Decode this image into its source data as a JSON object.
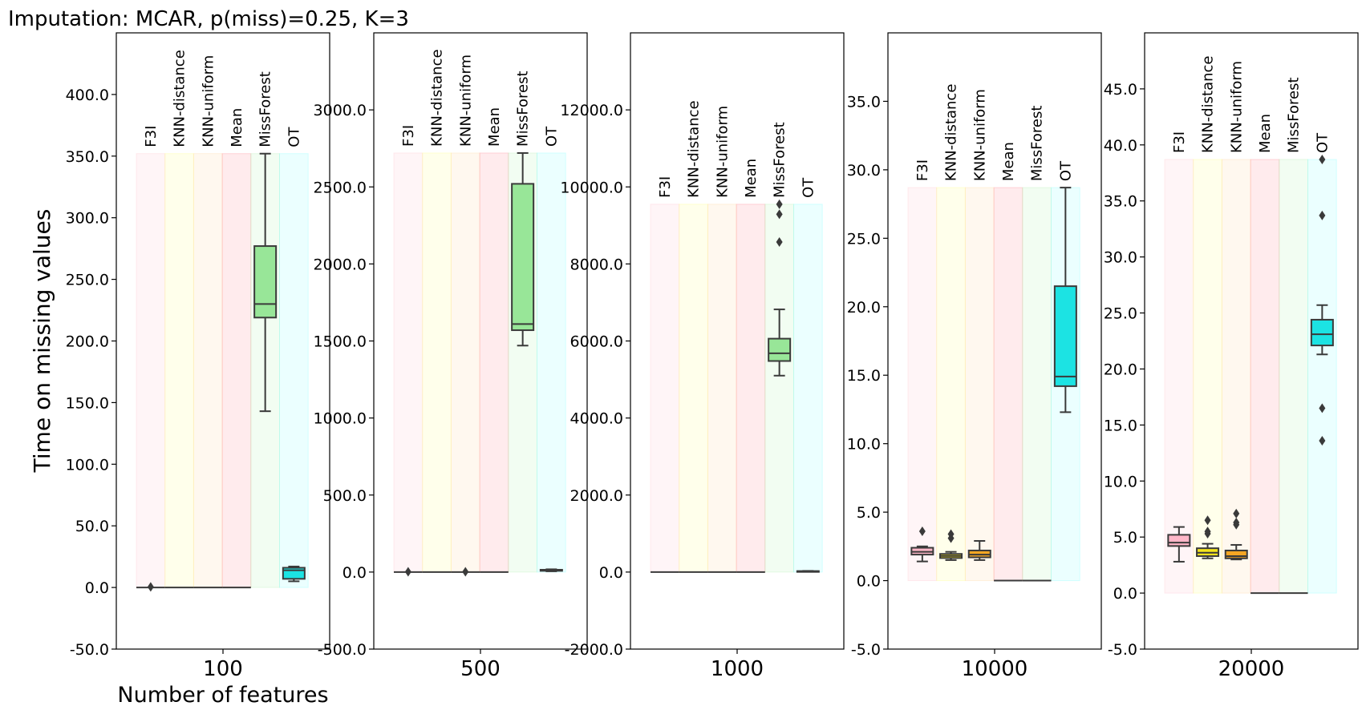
{
  "figure": {
    "title": "Imputation: MCAR, p(miss)=0.25, K=3",
    "ylabel": "Time on missing values",
    "xlabel": "Number of features"
  },
  "methods": [
    "F3I",
    "KNN-distance",
    "KNN-uniform",
    "Mean",
    "MissForest",
    "OT"
  ],
  "colors": {
    "band": [
      "#ffc0cb",
      "#ffff80",
      "#ffd59a",
      "#ff8090",
      "#b0f0b0",
      "#80ffff"
    ],
    "box": [
      "#ffb6c8",
      "#f5e51c",
      "#f5a623",
      "#f45b6a",
      "#98e698",
      "#1ce3e3"
    ],
    "line": "#3a3a3a"
  },
  "chart_data": [
    {
      "type": "box",
      "x_tick": "100",
      "ylim": [
        -50,
        450
      ],
      "yticks": [
        -50,
        0,
        50,
        100,
        150,
        200,
        250,
        300,
        350,
        400
      ],
      "ytick_labels": [
        "-50.0",
        "0.0",
        "50.0",
        "100.0",
        "150.0",
        "200.0",
        "250.0",
        "300.0",
        "350.0",
        "400.0"
      ],
      "band_top": 352,
      "boxes": [
        {
          "method": "F3I",
          "whislo": 0,
          "q1": 0,
          "med": 0,
          "q3": 0,
          "whishi": 0,
          "fliers": [
            0.5
          ]
        },
        {
          "method": "KNN-distance",
          "whislo": 0,
          "q1": 0,
          "med": 0,
          "q3": 0,
          "whishi": 0,
          "fliers": []
        },
        {
          "method": "KNN-uniform",
          "whislo": 0,
          "q1": 0,
          "med": 0,
          "q3": 0,
          "whishi": 0,
          "fliers": []
        },
        {
          "method": "Mean",
          "whislo": 0,
          "q1": 0,
          "med": 0,
          "q3": 0,
          "whishi": 0,
          "fliers": []
        },
        {
          "method": "MissForest",
          "whislo": 143,
          "q1": 219,
          "med": 230,
          "q3": 277,
          "whishi": 352,
          "fliers": []
        },
        {
          "method": "OT",
          "whislo": 5,
          "q1": 7,
          "med": 14,
          "q3": 16,
          "whishi": 17,
          "fliers": []
        }
      ]
    },
    {
      "type": "box",
      "x_tick": "500",
      "ylim": [
        -500,
        3500
      ],
      "yticks": [
        -500,
        0,
        500,
        1000,
        1500,
        2000,
        2500,
        3000
      ],
      "ytick_labels": [
        "-500.0",
        "0.0",
        "500.0",
        "1000.0",
        "1500.0",
        "2000.0",
        "2500.0",
        "3000.0"
      ],
      "band_top": 2720,
      "boxes": [
        {
          "method": "F3I",
          "whislo": 0,
          "q1": 0,
          "med": 0,
          "q3": 0,
          "whishi": 0,
          "fliers": [
            2
          ]
        },
        {
          "method": "KNN-distance",
          "whislo": 0,
          "q1": 0,
          "med": 0,
          "q3": 0,
          "whishi": 0,
          "fliers": []
        },
        {
          "method": "KNN-uniform",
          "whislo": 0,
          "q1": 0,
          "med": 0,
          "q3": 0,
          "whishi": 0,
          "fliers": [
            2
          ]
        },
        {
          "method": "Mean",
          "whislo": 0,
          "q1": 0,
          "med": 0,
          "q3": 0,
          "whishi": 0,
          "fliers": []
        },
        {
          "method": "MissForest",
          "whislo": 1470,
          "q1": 1570,
          "med": 1610,
          "q3": 2520,
          "whishi": 2720,
          "fliers": []
        },
        {
          "method": "OT",
          "whislo": 5,
          "q1": 8,
          "med": 12,
          "q3": 15,
          "whishi": 18,
          "fliers": []
        }
      ]
    },
    {
      "type": "box",
      "x_tick": "1000",
      "ylim": [
        -2000,
        14000
      ],
      "yticks": [
        -2000,
        0,
        2000,
        4000,
        6000,
        8000,
        10000,
        12000
      ],
      "ytick_labels": [
        "-2000.0",
        "0.0",
        "2000.0",
        "4000.0",
        "6000.0",
        "8000.0",
        "10000.0",
        "12000.0"
      ],
      "band_top": 9550,
      "boxes": [
        {
          "method": "F3I",
          "whislo": 0,
          "q1": 0,
          "med": 0,
          "q3": 0,
          "whishi": 0,
          "fliers": []
        },
        {
          "method": "KNN-distance",
          "whislo": 0,
          "q1": 0,
          "med": 0,
          "q3": 0,
          "whishi": 0,
          "fliers": []
        },
        {
          "method": "KNN-uniform",
          "whislo": 0,
          "q1": 0,
          "med": 0,
          "q3": 0,
          "whishi": 0,
          "fliers": []
        },
        {
          "method": "Mean",
          "whislo": 0,
          "q1": 0,
          "med": 0,
          "q3": 0,
          "whishi": 0,
          "fliers": []
        },
        {
          "method": "MissForest",
          "whislo": 5100,
          "q1": 5480,
          "med": 5680,
          "q3": 6060,
          "whishi": 6820,
          "fliers": [
            8570,
            9290,
            9550
          ]
        },
        {
          "method": "OT",
          "whislo": 10,
          "q1": 15,
          "med": 20,
          "q3": 25,
          "whishi": 30,
          "fliers": []
        }
      ]
    },
    {
      "type": "box",
      "x_tick": "10000",
      "ylim": [
        -5,
        40
      ],
      "yticks": [
        -5,
        0,
        5,
        10,
        15,
        20,
        25,
        30,
        35
      ],
      "ytick_labels": [
        "-5.0",
        "0.0",
        "5.0",
        "10.0",
        "15.0",
        "20.0",
        "25.0",
        "30.0",
        "35.0"
      ],
      "band_top": 28.7,
      "boxes": [
        {
          "method": "F3I",
          "whislo": 1.4,
          "q1": 1.9,
          "med": 2.1,
          "q3": 2.4,
          "whishi": 2.5,
          "fliers": [
            3.6
          ]
        },
        {
          "method": "KNN-distance",
          "whislo": 1.5,
          "q1": 1.65,
          "med": 1.8,
          "q3": 1.95,
          "whishi": 2.1,
          "fliers": [
            3.1,
            3.4
          ]
        },
        {
          "method": "KNN-uniform",
          "whislo": 1.5,
          "q1": 1.7,
          "med": 1.9,
          "q3": 2.2,
          "whishi": 2.9,
          "fliers": []
        },
        {
          "method": "Mean",
          "whislo": 0,
          "q1": 0,
          "med": 0,
          "q3": 0,
          "whishi": 0,
          "fliers": []
        },
        {
          "method": "MissForest",
          "whislo": 0,
          "q1": 0,
          "med": 0,
          "q3": 0,
          "whishi": 0,
          "fliers": []
        },
        {
          "method": "OT",
          "whislo": 12.3,
          "q1": 14.2,
          "med": 14.9,
          "q3": 21.5,
          "whishi": 28.7,
          "fliers": []
        }
      ]
    },
    {
      "type": "box",
      "x_tick": "20000",
      "ylim": [
        -5,
        50
      ],
      "yticks": [
        -5,
        0,
        5,
        10,
        15,
        20,
        25,
        30,
        35,
        40,
        45
      ],
      "ytick_labels": [
        "-5.0",
        "0.0",
        "5.0",
        "10.0",
        "15.0",
        "20.0",
        "25.0",
        "30.0",
        "35.0",
        "40.0",
        "45.0"
      ],
      "band_top": 38.7,
      "boxes": [
        {
          "method": "F3I",
          "whislo": 2.8,
          "q1": 4.2,
          "med": 4.5,
          "q3": 5.2,
          "whishi": 5.9,
          "fliers": []
        },
        {
          "method": "KNN-distance",
          "whislo": 3.1,
          "q1": 3.3,
          "med": 3.6,
          "q3": 4.0,
          "whishi": 4.4,
          "fliers": [
            5.3,
            5.5,
            6.5
          ]
        },
        {
          "method": "KNN-uniform",
          "whislo": 3.0,
          "q1": 3.1,
          "med": 3.3,
          "q3": 3.8,
          "whishi": 4.3,
          "fliers": [
            6.1,
            6.3,
            7.1
          ]
        },
        {
          "method": "Mean",
          "whislo": 0,
          "q1": 0,
          "med": 0,
          "q3": 0,
          "whishi": 0,
          "fliers": []
        },
        {
          "method": "MissForest",
          "whislo": 0,
          "q1": 0,
          "med": 0,
          "q3": 0,
          "whishi": 0,
          "fliers": []
        },
        {
          "method": "OT",
          "whislo": 21.3,
          "q1": 22.1,
          "med": 23.1,
          "q3": 24.4,
          "whishi": 25.7,
          "fliers": [
            13.6,
            16.5,
            33.7,
            38.7
          ]
        }
      ]
    }
  ]
}
